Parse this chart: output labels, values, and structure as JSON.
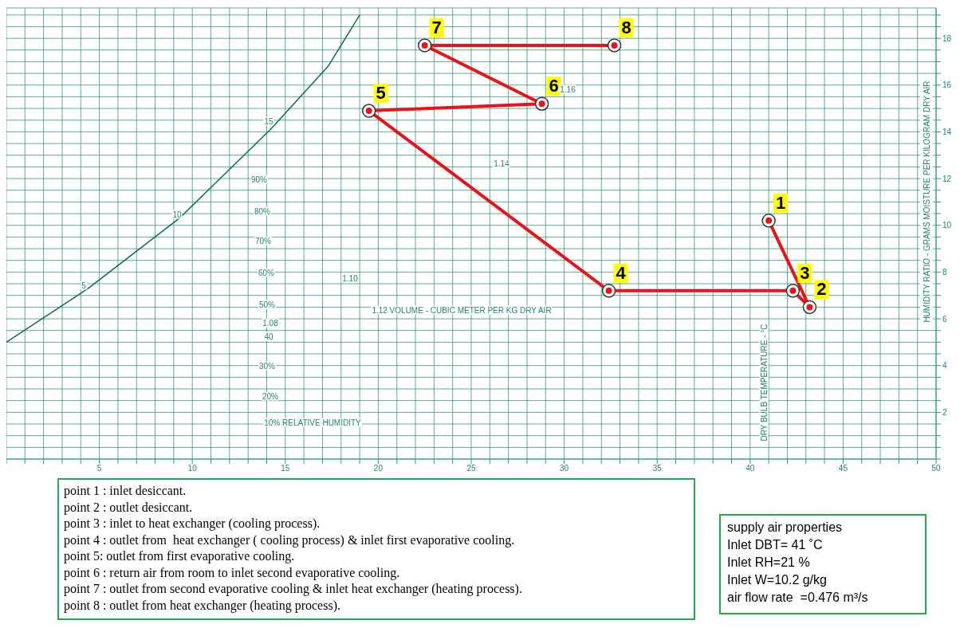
{
  "chart_data": {
    "type": "line",
    "ylabel": "HUMIDITY RATIO - GRAMS MOISTURE PER KILOGRAM DRY AIR",
    "xlim": [
      0,
      50
    ],
    "ylim": [
      0,
      19.3
    ],
    "xticks": [
      {
        "value": 0,
        "label": null
      },
      {
        "value": 1,
        "label": null
      },
      {
        "value": 2,
        "label": null
      },
      {
        "value": 3,
        "label": null
      },
      {
        "value": 4,
        "label": null
      },
      5,
      {
        "value": 6,
        "label": null
      },
      {
        "value": 7,
        "label": null
      },
      {
        "value": 8,
        "label": null
      },
      {
        "value": 9,
        "label": null
      },
      10,
      {
        "value": 11,
        "label": null
      },
      {
        "value": 12,
        "label": null
      },
      {
        "value": 13,
        "label": null
      },
      {
        "value": 14,
        "label": null
      },
      15,
      {
        "value": 16,
        "label": null
      },
      {
        "value": 17,
        "label": null
      },
      {
        "value": 18,
        "label": null
      },
      {
        "value": 19,
        "label": null
      },
      20,
      {
        "value": 21,
        "label": null
      },
      {
        "value": 22,
        "label": null
      },
      {
        "value": 23,
        "label": null
      },
      {
        "value": 24,
        "label": null
      },
      25,
      {
        "value": 26,
        "label": null
      },
      {
        "value": 27,
        "label": null
      },
      {
        "value": 28,
        "label": null
      },
      {
        "value": 29,
        "label": null
      },
      30,
      {
        "value": 31,
        "label": null
      },
      {
        "value": 32,
        "label": null
      },
      {
        "value": 33,
        "label": null
      },
      {
        "value": 34,
        "label": null
      },
      35,
      {
        "value": 36,
        "label": null
      },
      {
        "value": 37,
        "label": null
      },
      {
        "value": 38,
        "label": null
      },
      {
        "value": 39,
        "label": null
      },
      40,
      {
        "value": 41,
        "label": null
      },
      {
        "value": 42,
        "label": null
      },
      {
        "value": 43,
        "label": null
      },
      {
        "value": 44,
        "label": null
      },
      45,
      {
        "value": 46,
        "label": null
      },
      {
        "value": 47,
        "label": null
      },
      {
        "value": 48,
        "label": null
      },
      {
        "value": 49,
        "label": null
      },
      50
    ],
    "yticks": [
      {
        "value": 0,
        "label": null
      },
      {
        "value": 0.5,
        "label": null
      },
      {
        "value": 1,
        "label": null
      },
      {
        "value": 1.5,
        "label": null
      },
      2,
      {
        "value": 2.5,
        "label": null
      },
      {
        "value": 3,
        "label": null
      },
      {
        "value": 3.5,
        "label": null
      },
      4,
      {
        "value": 4.5,
        "label": null
      },
      {
        "value": 5,
        "label": null
      },
      {
        "value": 5.5,
        "label": null
      },
      6,
      {
        "value": 6.5,
        "label": null
      },
      {
        "value": 7,
        "label": null
      },
      {
        "value": 7.5,
        "label": null
      },
      8,
      {
        "value": 8.5,
        "label": null
      },
      {
        "value": 9,
        "label": null
      },
      {
        "value": 9.5,
        "label": null
      },
      10,
      {
        "value": 10.5,
        "label": null
      },
      {
        "value": 11,
        "label": null
      },
      {
        "value": 11.5,
        "label": null
      },
      12,
      {
        "value": 12.5,
        "label": null
      },
      {
        "value": 13,
        "label": null
      },
      {
        "value": 13.5,
        "label": null
      },
      14,
      {
        "value": 14.5,
        "label": null
      },
      {
        "value": 15,
        "label": null
      },
      {
        "value": 15.5,
        "label": null
      },
      16,
      {
        "value": 16.5,
        "label": null
      },
      {
        "value": 17,
        "label": null
      },
      {
        "value": 17.5,
        "label": null
      },
      18,
      {
        "value": 18.5,
        "label": null
      },
      {
        "value": 19,
        "label": null
      }
    ],
    "grid": true,
    "series": [
      {
        "color": "#0f6b43",
        "marker": "none",
        "x": [
          0,
          4.4,
          9.3,
          14.2,
          17.3,
          19.0
        ],
        "values": [
          5.0,
          7.3,
          10.3,
          14.1,
          16.8,
          19.0
        ]
      },
      {
        "color": "#e8141c",
        "marker": "circle",
        "x": [
          41,
          43.2,
          42.3,
          32.4,
          19.5,
          28.8,
          22.5,
          32.7
        ],
        "values": [
          10.2,
          6.5,
          7.2,
          7.2,
          14.9,
          15.2,
          17.7,
          17.7
        ]
      }
    ],
    "annotations": [
      {
        "text": "1",
        "x": 41,
        "y": 10.2
      },
      {
        "text": "2",
        "x": 43.2,
        "y": 6.5
      },
      {
        "text": "3",
        "x": 42.3,
        "y": 7.2
      },
      {
        "text": "4",
        "x": 32.4,
        "y": 7.2
      },
      {
        "text": "5",
        "x": 19.5,
        "y": 14.9
      },
      {
        "text": "6",
        "x": 28.8,
        "y": 15.2
      },
      {
        "text": "7",
        "x": 22.5,
        "y": 17.7
      },
      {
        "text": "8",
        "x": 32.7,
        "y": 17.7
      },
      "10% RELATIVE HUMIDITY",
      "20%",
      "30%",
      "40",
      "50%",
      "60%",
      "70%",
      "80%",
      "90%",
      "5",
      "10",
      "15",
      "1.08",
      "1.10",
      "1.12 VOLUME - CUBIC METER PER KG DRY AIR",
      "1.14",
      "1.16",
      "DRY BULB TEMPERATURE - °C",
      "point 1 : inlet desiccant.\npoint 2 : outlet desiccant.\npoint 3 : inlet to heat exchanger (cooling process).\npoint 4 : outlet from  heat exchanger ( cooling process) & inlet first evaporative cooling.\npoint 5: outlet from first evaporative cooling.\npoint 6 : return air from room to inlet second evaporative cooling.\npoint 7 : outlet from second evaporative cooling & inlet heat exchanger (heating process).\npoint 8 : outlet from heat exchanger (heating process).",
      "supply air properties\nInlet DBT= 41 ˚C\nInlet RH=21 %\nInlet W=10.2 g/kg\nair flow rate  =0.476 m³/s"
    ]
  }
}
